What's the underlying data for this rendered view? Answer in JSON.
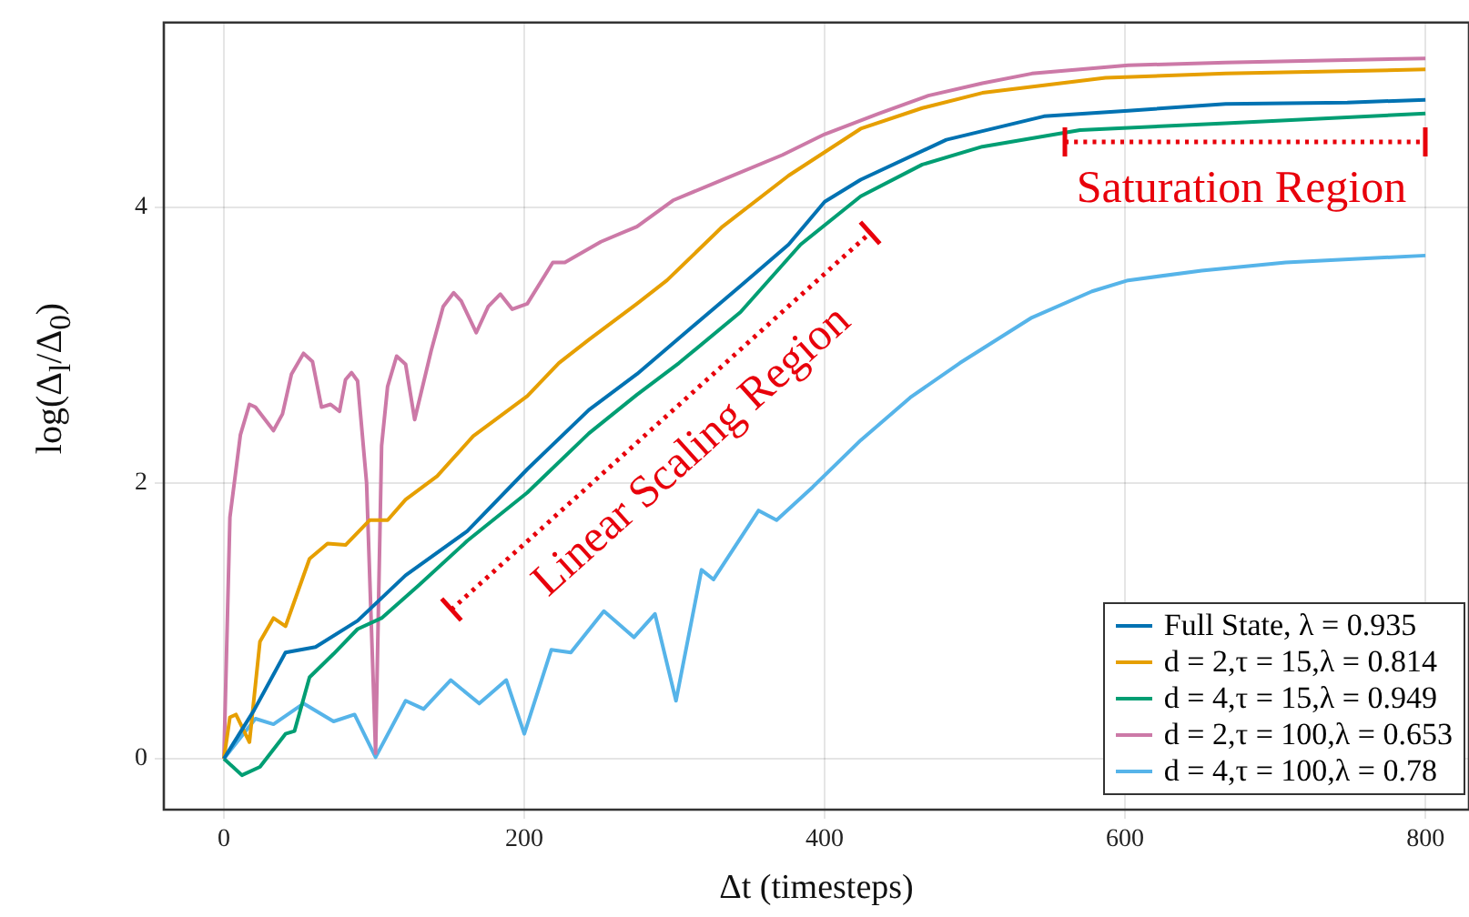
{
  "chart_data": {
    "type": "line",
    "xlabel": "Δt (timesteps)",
    "ylabel": "log(Δ$_{l}$/Δ$_{0}$)",
    "xlim": [
      -40,
      829
    ],
    "ylim": [
      -0.37,
      5.34
    ],
    "xticks": [
      0,
      200,
      400,
      600,
      800
    ],
    "yticks": [
      0,
      2,
      4
    ],
    "grid": true,
    "legend": "bottom right",
    "marker": "none",
    "line_style": "solid",
    "annotations": [
      "Linear Scaling Region",
      "Saturation Region"
    ],
    "series": [
      {
        "name": "Full State, λ = 0.935",
        "color": "#0072b2",
        "x": [
          0,
          20,
          41,
          61,
          89,
          121,
          162,
          202,
          243,
          275,
          303,
          344,
          376,
          400,
          424,
          481,
          546,
          602,
          667,
          748,
          800
        ],
        "values": [
          0,
          0.35,
          0.77,
          0.81,
          1.0,
          1.33,
          1.65,
          2.1,
          2.53,
          2.79,
          3.05,
          3.43,
          3.73,
          4.04,
          4.2,
          4.49,
          4.66,
          4.7,
          4.75,
          4.76,
          4.78
        ]
      },
      {
        "name": "d = 2,τ = 15,λ = 0.814",
        "color": "#e69f00",
        "x": [
          0,
          4,
          8,
          17,
          24,
          33,
          41,
          57,
          69,
          81,
          97,
          109,
          121,
          142,
          166,
          202,
          223,
          243,
          275,
          295,
          332,
          376,
          424,
          465,
          505,
          587,
          667,
          800
        ],
        "values": [
          0,
          0.3,
          0.32,
          0.12,
          0.85,
          1.02,
          0.96,
          1.45,
          1.56,
          1.55,
          1.73,
          1.73,
          1.88,
          2.05,
          2.34,
          2.63,
          2.87,
          3.04,
          3.3,
          3.47,
          3.86,
          4.23,
          4.57,
          4.72,
          4.83,
          4.94,
          4.97,
          5.0
        ]
      },
      {
        "name": "d = 4,τ = 15,λ = 0.949",
        "color": "#009e73",
        "x": [
          0,
          12,
          24,
          41,
          47,
          57,
          73,
          89,
          105,
          130,
          162,
          202,
          243,
          275,
          303,
          344,
          384,
          424,
          465,
          505,
          570,
          667,
          800
        ],
        "values": [
          0,
          -0.12,
          -0.06,
          0.18,
          0.2,
          0.59,
          0.76,
          0.94,
          1.02,
          1.26,
          1.58,
          1.93,
          2.36,
          2.64,
          2.87,
          3.24,
          3.73,
          4.08,
          4.31,
          4.44,
          4.56,
          4.61,
          4.68
        ]
      },
      {
        "name": "d = 2,τ = 100,λ = 0.653",
        "color": "#cc79a7",
        "x": [
          0,
          4,
          11,
          17,
          21,
          33,
          39,
          45,
          53,
          59,
          65,
          71,
          77,
          81,
          85,
          89,
          95,
          101,
          105,
          109,
          115,
          121,
          127,
          138,
          146,
          153,
          158,
          168,
          176,
          184,
          192,
          202,
          219,
          227,
          251,
          275,
          299,
          332,
          372,
          400,
          436,
          469,
          505,
          538,
          602,
          667,
          800
        ],
        "values": [
          0,
          1.75,
          2.35,
          2.57,
          2.55,
          2.38,
          2.5,
          2.79,
          2.94,
          2.88,
          2.55,
          2.57,
          2.52,
          2.75,
          2.8,
          2.74,
          2.0,
          0.04,
          2.27,
          2.7,
          2.92,
          2.86,
          2.46,
          2.96,
          3.28,
          3.38,
          3.32,
          3.09,
          3.28,
          3.37,
          3.26,
          3.3,
          3.6,
          3.6,
          3.75,
          3.86,
          4.05,
          4.2,
          4.38,
          4.53,
          4.68,
          4.81,
          4.9,
          4.97,
          5.03,
          5.05,
          5.08
        ]
      },
      {
        "name": "d = 4,τ = 100,λ = 0.78",
        "color": "#56b4e9",
        "x": [
          0,
          21,
          33,
          53,
          73,
          87,
          101,
          121,
          133,
          151,
          170,
          188,
          200,
          218,
          231,
          253,
          273,
          287,
          301,
          318,
          326,
          356,
          368,
          392,
          424,
          457,
          490,
          538,
          578,
          602,
          651,
          707,
          800
        ],
        "values": [
          0,
          0.29,
          0.25,
          0.4,
          0.27,
          0.32,
          0.01,
          0.42,
          0.36,
          0.57,
          0.4,
          0.57,
          0.18,
          0.79,
          0.77,
          1.07,
          0.88,
          1.05,
          0.42,
          1.37,
          1.3,
          1.8,
          1.73,
          1.97,
          2.31,
          2.62,
          2.87,
          3.2,
          3.39,
          3.47,
          3.54,
          3.6,
          3.65
        ]
      }
    ]
  }
}
